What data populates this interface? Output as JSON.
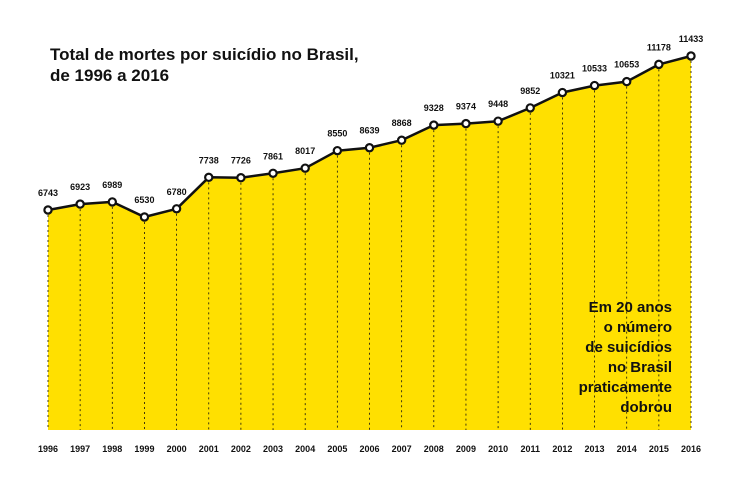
{
  "title_lines": [
    "Total de mortes por suicídio no Brasil,",
    "de 1996 a 2016"
  ],
  "note_lines": [
    "Em 20 anos",
    "o número",
    "de suicídios",
    "no Brasil",
    "praticamente",
    "dobrou"
  ],
  "colors": {
    "fill": "#FFE000",
    "line": "#111111",
    "marker_fill": "#ffffff",
    "text": "#111111"
  },
  "chart_data": {
    "type": "area",
    "title": "Total de mortes por suicídio no Brasil, de 1996 a 2016",
    "xlabel": "",
    "ylabel": "",
    "categories": [
      "1996",
      "1997",
      "1998",
      "1999",
      "2000",
      "2001",
      "2002",
      "2003",
      "2004",
      "2005",
      "2006",
      "2007",
      "2008",
      "2009",
      "2010",
      "2011",
      "2012",
      "2013",
      "2014",
      "2015",
      "2016"
    ],
    "values": [
      6743,
      6923,
      6989,
      6530,
      6780,
      7738,
      7726,
      7861,
      8017,
      8550,
      8639,
      8868,
      9328,
      9374,
      9448,
      9852,
      10321,
      10533,
      10653,
      11178,
      11433
    ],
    "data_labels": true,
    "markers": true,
    "grid": "vertical dashed lines at each year",
    "annotation": "Em 20 anos o número de suicídios no Brasil praticamente dobrou"
  }
}
